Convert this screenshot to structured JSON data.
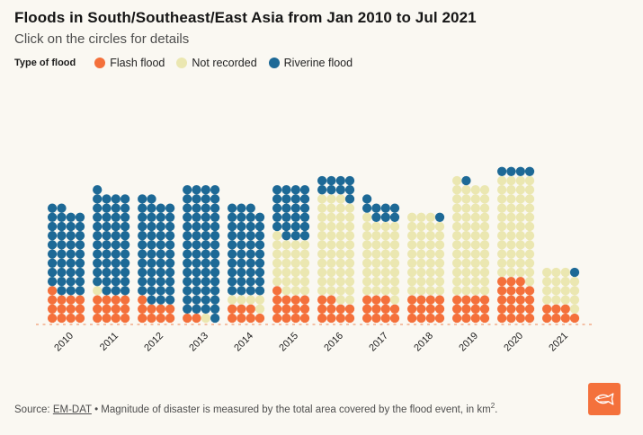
{
  "header": {
    "title": "Floods in South/Southeast/East Asia from Jan 2010 to Jul 2021",
    "subtitle": "Click on the circles for details"
  },
  "legend": {
    "label": "Type of flood",
    "items": [
      {
        "label": "Flash flood",
        "color": "#F4703B"
      },
      {
        "label": "Not recorded",
        "color": "#EBE7B1"
      },
      {
        "label": "Riverine flood",
        "color": "#1D6996"
      }
    ]
  },
  "chart_data": {
    "type": "unit-dot-column",
    "unit": "1 circle = 1 flood event",
    "dots_per_row": 4,
    "stack_order_bottom_to_top": [
      "Flash flood",
      "Not recorded",
      "Riverine flood"
    ],
    "categories": [
      "2010",
      "2011",
      "2012",
      "2013",
      "2014",
      "2015",
      "2016",
      "2017",
      "2018",
      "2019",
      "2020",
      "2021"
    ],
    "series": [
      {
        "name": "Flash flood",
        "color": "#F4703B",
        "values": [
          13,
          12,
          9,
          2,
          7,
          13,
          10,
          11,
          12,
          12,
          19,
          7
        ]
      },
      {
        "name": "Not recorded",
        "color": "#EBE7B1",
        "values": [
          0,
          1,
          0,
          1,
          5,
          24,
          45,
          34,
          35,
          49,
          45,
          16
        ]
      },
      {
        "name": "Riverine flood",
        "color": "#1D6996",
        "values": [
          37,
          44,
          45,
          57,
          39,
          23,
          9,
          8,
          1,
          1,
          4,
          1
        ]
      }
    ],
    "totals": [
      50,
      57,
      54,
      60,
      51,
      60,
      64,
      53,
      48,
      62,
      68,
      24
    ],
    "baseline_color": "#F2AC8A"
  },
  "footer": {
    "source_label": "Source:",
    "source_link": "EM-DAT",
    "separator": " • ",
    "note_prefix": "Magnitude of disaster is measured by the total area covered by the flood event, in km",
    "note_superscript": "2",
    "note_suffix": "."
  },
  "logo": {
    "name": "fish-logo",
    "background_color": "#F4713C"
  }
}
